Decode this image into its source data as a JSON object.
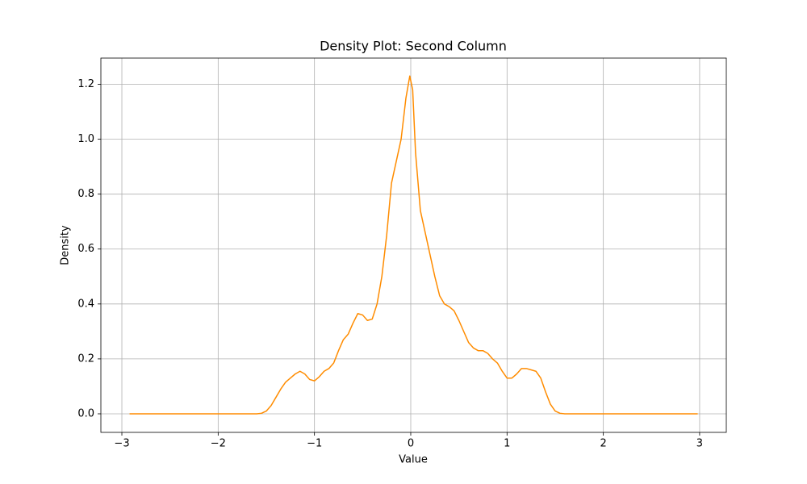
{
  "chart_data": {
    "type": "line",
    "title": "Density Plot: Second Column",
    "xlabel": "Value",
    "ylabel": "Density",
    "x": [
      -2.92,
      -1.6,
      -1.55,
      -1.5,
      -1.45,
      -1.4,
      -1.35,
      -1.3,
      -1.25,
      -1.2,
      -1.15,
      -1.1,
      -1.05,
      -1.0,
      -0.95,
      -0.9,
      -0.85,
      -0.8,
      -0.75,
      -0.7,
      -0.65,
      -0.6,
      -0.55,
      -0.5,
      -0.45,
      -0.4,
      -0.35,
      -0.3,
      -0.25,
      -0.2,
      -0.15,
      -0.1,
      -0.05,
      -0.01,
      0.02,
      0.05,
      0.1,
      0.15,
      0.2,
      0.25,
      0.3,
      0.35,
      0.4,
      0.45,
      0.5,
      0.55,
      0.6,
      0.65,
      0.7,
      0.75,
      0.8,
      0.85,
      0.9,
      0.95,
      1.0,
      1.05,
      1.1,
      1.15,
      1.2,
      1.25,
      1.3,
      1.35,
      1.4,
      1.45,
      1.5,
      1.55,
      1.6,
      2.98
    ],
    "values": [
      0,
      0,
      0.002,
      0.01,
      0.03,
      0.06,
      0.09,
      0.115,
      0.13,
      0.145,
      0.155,
      0.145,
      0.125,
      0.12,
      0.135,
      0.155,
      0.165,
      0.185,
      0.23,
      0.27,
      0.29,
      0.33,
      0.365,
      0.36,
      0.34,
      0.345,
      0.4,
      0.5,
      0.65,
      0.84,
      0.92,
      1.0,
      1.15,
      1.23,
      1.18,
      0.95,
      0.74,
      0.66,
      0.58,
      0.5,
      0.43,
      0.4,
      0.39,
      0.375,
      0.34,
      0.3,
      0.26,
      0.24,
      0.23,
      0.23,
      0.22,
      0.2,
      0.185,
      0.155,
      0.13,
      0.13,
      0.145,
      0.165,
      0.165,
      0.16,
      0.155,
      0.13,
      0.08,
      0.035,
      0.01,
      0.002,
      0,
      0
    ],
    "color": "#ff8c00",
    "xlim": [
      -3.218,
      3.277
    ],
    "xticks": [
      {
        "value": -3,
        "label": "−3"
      },
      {
        "value": -2,
        "label": "−2"
      },
      {
        "value": -1,
        "label": "−1"
      },
      0,
      1,
      2,
      3
    ],
    "ylim": [
      -0.0676,
      1.2955
    ],
    "yticks": [
      {
        "value": 0,
        "label": "0.0"
      },
      0.2,
      0.4,
      0.6,
      0.8,
      {
        "value": 1,
        "label": "1.0"
      },
      1.2
    ],
    "grid": true
  }
}
